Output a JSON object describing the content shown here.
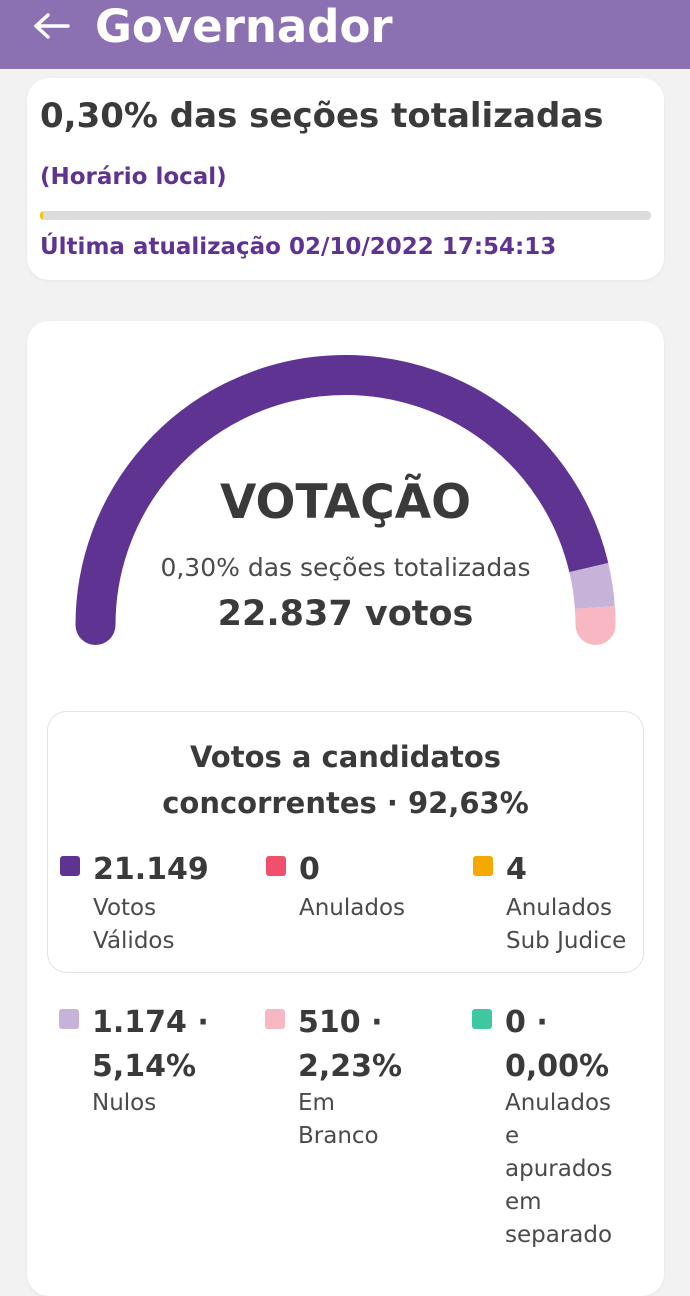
{
  "header": {
    "title": "Governador",
    "back_icon": "arrow-left-icon"
  },
  "status": {
    "title": "0,30% das seções totalizadas",
    "local_time": "(Horário local)",
    "progress_fraction": 0.003,
    "last_update": "Última atualização 02/10/2022 17:54:13"
  },
  "gauge": {
    "title": "VOTAÇÃO",
    "subtitle": "0,30% das seções totalizadas",
    "total": "22.837 votos",
    "segments": [
      {
        "name": "Votos Válidos",
        "value": 21149,
        "color": "#5f3391"
      },
      {
        "name": "Nulos",
        "value": 1174,
        "color": "#c7b2d9"
      },
      {
        "name": "Em Branco",
        "value": 510,
        "color": "#f7b8c4"
      }
    ]
  },
  "candidates": {
    "title_line1": "Votos a candidatos",
    "title_line2": "concorrentes · 92,63%",
    "items": [
      {
        "value": "21.149",
        "label_line1": "Votos",
        "label_line2": "Válidos",
        "color": "#5f3391"
      },
      {
        "value": "0",
        "label_line1": "Anulados",
        "label_line2": "",
        "color": "#f0506e"
      },
      {
        "value": "4",
        "label_line1": "Anulados",
        "label_line2": "Sub Judice",
        "color": "#f5a800"
      }
    ]
  },
  "others": [
    {
      "value_line1": "1.174 ·",
      "value_line2": "5,14%",
      "label": [
        "Nulos"
      ],
      "color": "#c7b2d9"
    },
    {
      "value_line1": "510 ·",
      "value_line2": "2,23%",
      "label": [
        "Em",
        "Branco"
      ],
      "color": "#f7b8c4"
    },
    {
      "value_line1": "0 ·",
      "value_line2": "0,00%",
      "label": [
        "Anulados",
        "e",
        "apurados",
        "em",
        "separado"
      ],
      "color": "#3ec7a0"
    }
  ]
}
